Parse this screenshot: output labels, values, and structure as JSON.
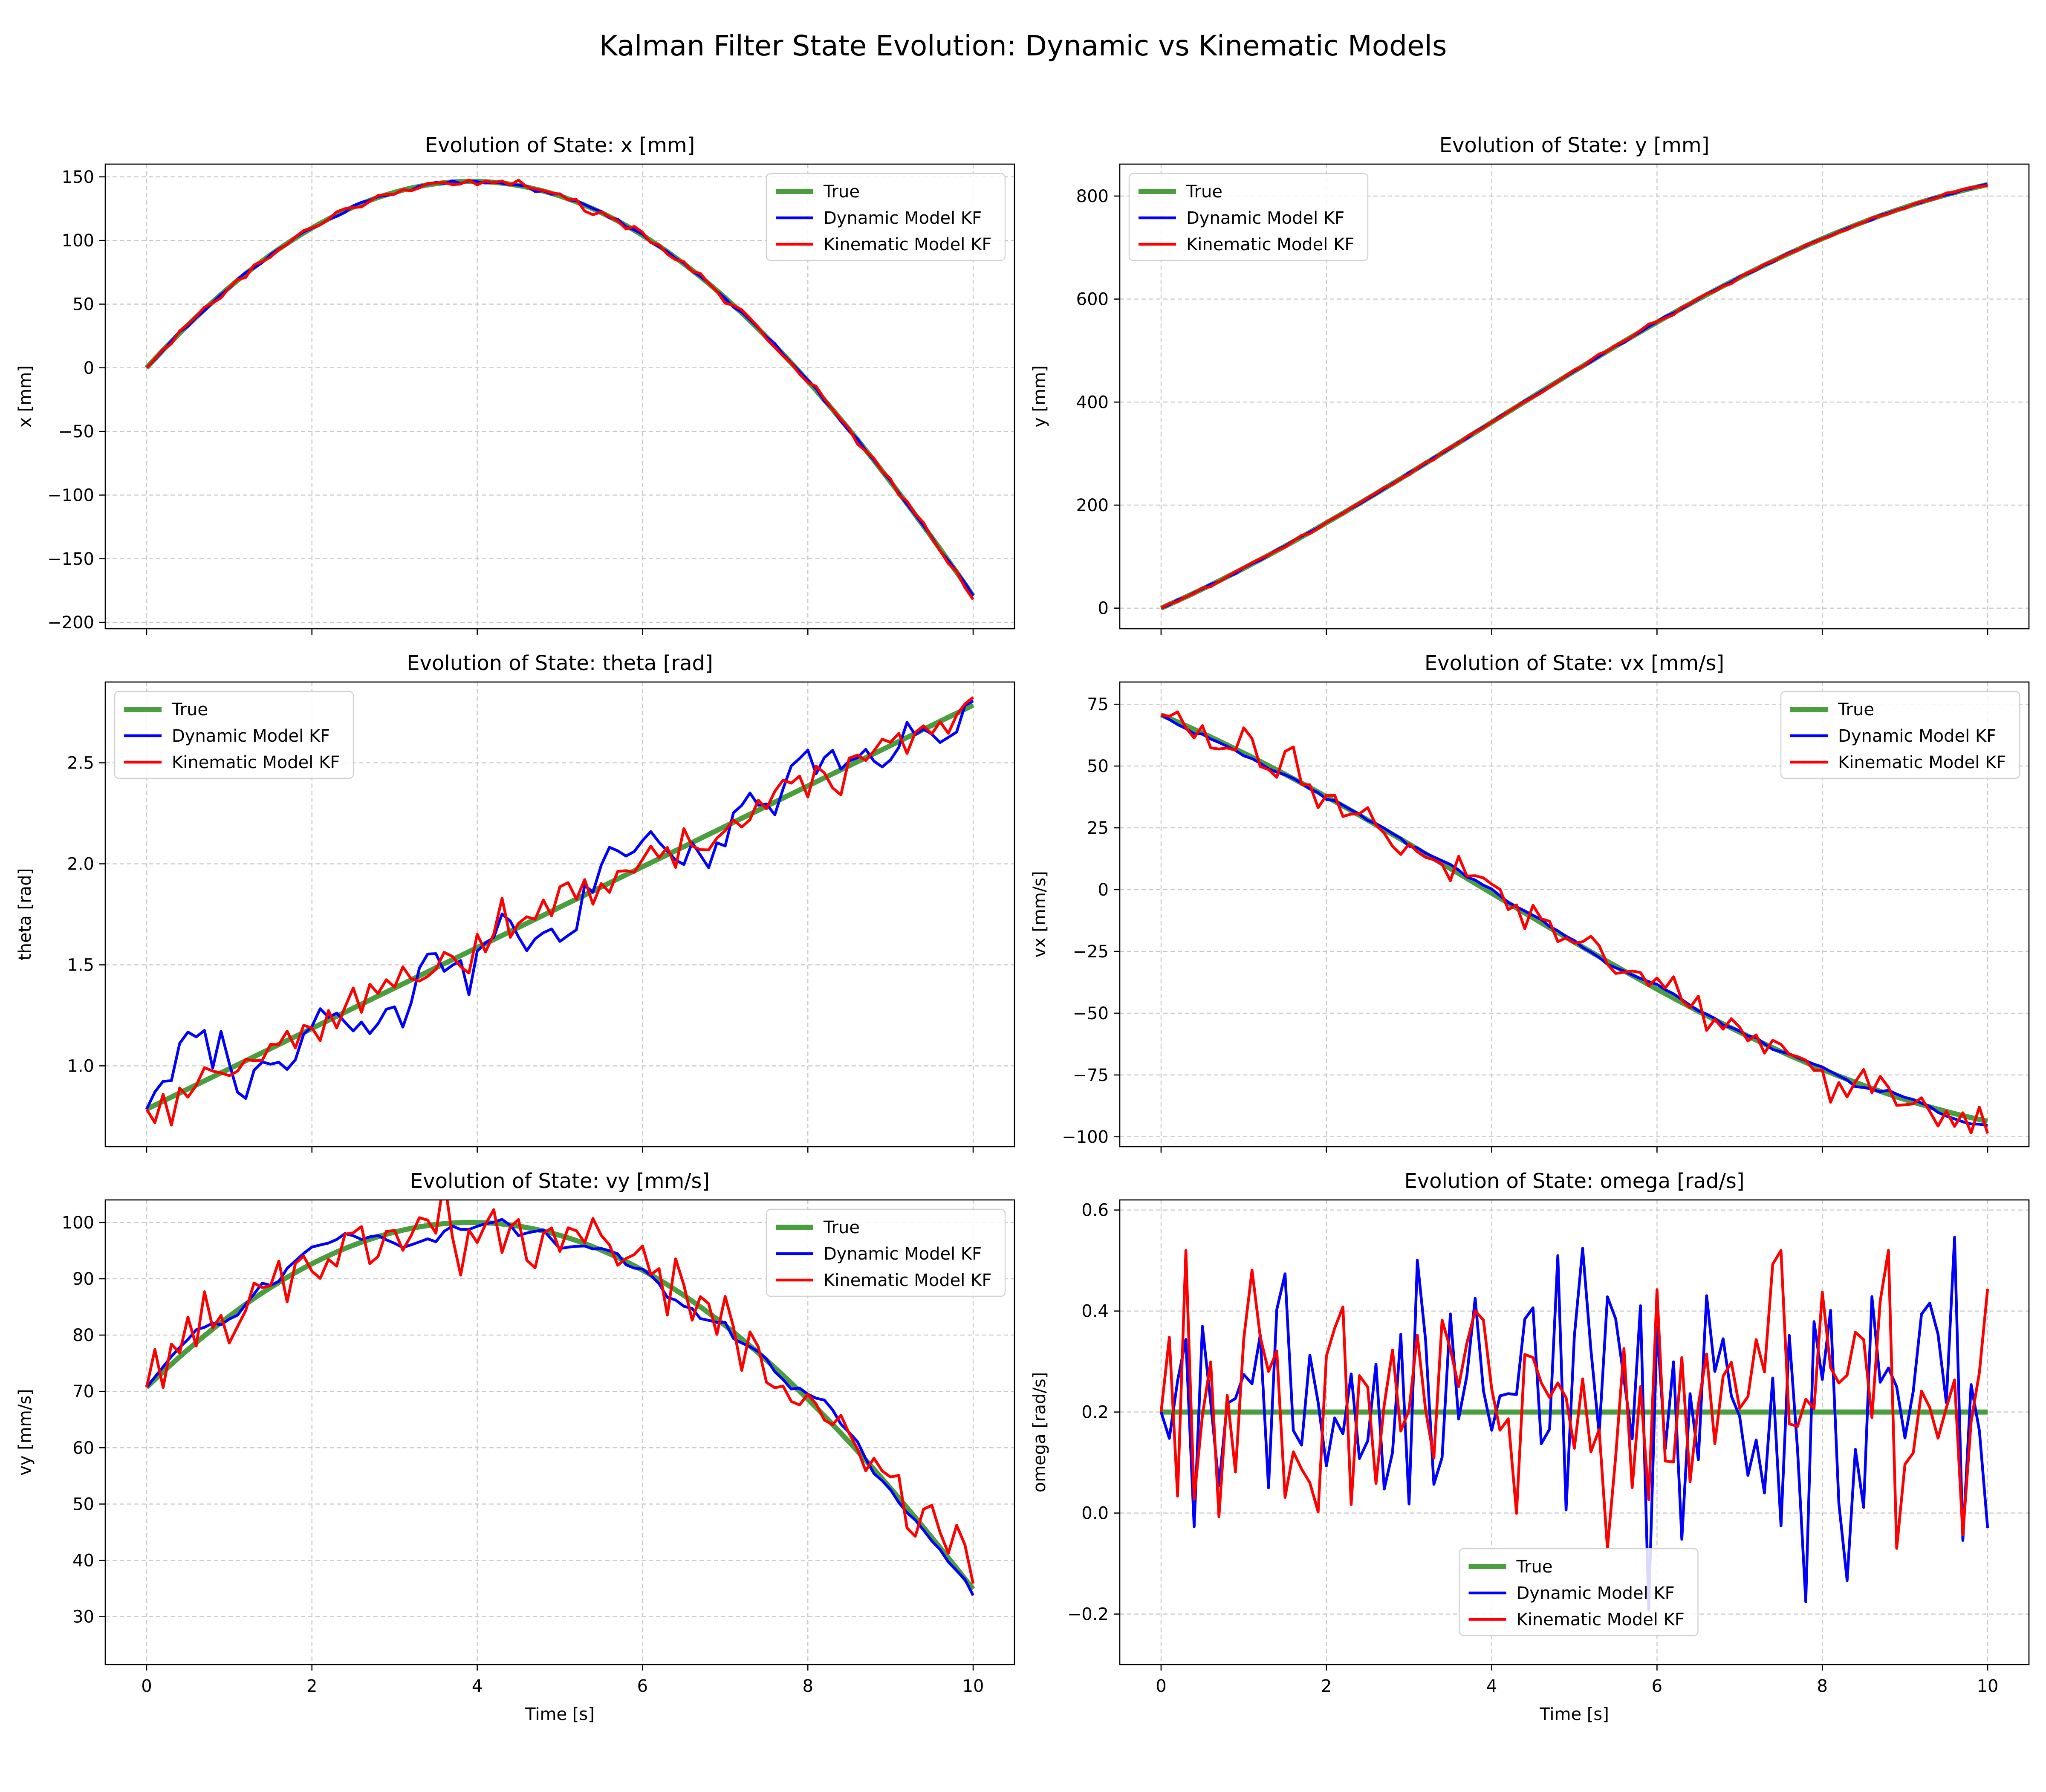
{
  "figure": {
    "title": "Kalman Filter State Evolution: Dynamic vs Kinematic Models"
  },
  "colors": {
    "true": "#4a9e40",
    "dynamic": "#0000ff",
    "kinematic": "#ff0000",
    "grid": "#c8c8c8"
  },
  "chart_data": [
    {
      "type": "line",
      "title": "Evolution of State: x [mm]",
      "xlabel": "",
      "ylabel": "x [mm]",
      "xlim": [
        -0.5,
        10.5
      ],
      "ylim": [
        -205,
        160
      ],
      "xticks": [
        0,
        2,
        4,
        6,
        8,
        10
      ],
      "yticks": [
        -200,
        -150,
        -100,
        -50,
        0,
        50,
        100,
        150
      ],
      "show_xticklabels": false,
      "grid": true,
      "legend": "top-right",
      "model": {
        "kind": "x"
      },
      "series": [
        {
          "name": "True",
          "role": "true"
        },
        {
          "name": "Dynamic Model KF",
          "role": "dynamic"
        },
        {
          "name": "Kinematic Model KF",
          "role": "kinematic"
        }
      ]
    },
    {
      "type": "line",
      "title": "Evolution of State: y [mm]",
      "xlabel": "",
      "ylabel": "y [mm]",
      "xlim": [
        -0.5,
        10.5
      ],
      "ylim": [
        -40,
        862
      ],
      "xticks": [
        0,
        2,
        4,
        6,
        8,
        10
      ],
      "yticks": [
        0,
        200,
        400,
        600,
        800
      ],
      "show_xticklabels": false,
      "grid": true,
      "legend": "top-left",
      "model": {
        "kind": "y"
      },
      "series": [
        {
          "name": "True",
          "role": "true"
        },
        {
          "name": "Dynamic Model KF",
          "role": "dynamic"
        },
        {
          "name": "Kinematic Model KF",
          "role": "kinematic"
        }
      ]
    },
    {
      "type": "line",
      "title": "Evolution of State: theta [rad]",
      "xlabel": "",
      "ylabel": "theta [rad]",
      "xlim": [
        -0.5,
        10.5
      ],
      "ylim": [
        0.6,
        2.9
      ],
      "xticks": [
        0,
        2,
        4,
        6,
        8,
        10
      ],
      "yticks": [
        1.0,
        1.5,
        2.0,
        2.5
      ],
      "tick_decimals": 1,
      "show_xticklabels": false,
      "grid": true,
      "legend": "top-left",
      "model": {
        "kind": "theta",
        "dyn_noise": 0.075,
        "kin_noise": 0.055
      },
      "series": [
        {
          "name": "True",
          "role": "true"
        },
        {
          "name": "Dynamic Model KF",
          "role": "dynamic"
        },
        {
          "name": "Kinematic Model KF",
          "role": "kinematic"
        }
      ]
    },
    {
      "type": "line",
      "title": "Evolution of State: vx [mm/s]",
      "xlabel": "",
      "ylabel": "vx [mm/s]",
      "xlim": [
        -0.5,
        10.5
      ],
      "ylim": [
        -104,
        84
      ],
      "xticks": [
        0,
        2,
        4,
        6,
        8,
        10
      ],
      "yticks": [
        -100,
        -75,
        -50,
        -25,
        0,
        25,
        50,
        75
      ],
      "show_xticklabels": false,
      "grid": true,
      "legend": "top-right",
      "model": {
        "kind": "vx",
        "dyn_noise": 0.6,
        "kin_noise": 4.5
      },
      "series": [
        {
          "name": "True",
          "role": "true"
        },
        {
          "name": "Dynamic Model KF",
          "role": "dynamic"
        },
        {
          "name": "Kinematic Model KF",
          "role": "kinematic"
        }
      ]
    },
    {
      "type": "line",
      "title": "Evolution of State: vy [mm/s]",
      "xlabel": "Time [s]",
      "ylabel": "vy [mm/s]",
      "xlim": [
        -0.5,
        10.5
      ],
      "ylim": [
        21.5,
        104
      ],
      "xticks": [
        0,
        2,
        4,
        6,
        8,
        10
      ],
      "yticks": [
        30,
        40,
        50,
        60,
        70,
        80,
        90,
        100
      ],
      "show_xticklabels": true,
      "grid": true,
      "legend": "top-right",
      "model": {
        "kind": "vy",
        "dyn_noise": 0.8,
        "kin_noise": 3.2
      },
      "series": [
        {
          "name": "True",
          "role": "true"
        },
        {
          "name": "Dynamic Model KF",
          "role": "dynamic"
        },
        {
          "name": "Kinematic Model KF",
          "role": "kinematic"
        }
      ]
    },
    {
      "type": "line",
      "title": "Evolution of State: omega [rad/s]",
      "xlabel": "Time [s]",
      "ylabel": "omega [rad/s]",
      "xlim": [
        -0.5,
        10.5
      ],
      "ylim": [
        -0.3,
        0.62
      ],
      "xticks": [
        0,
        2,
        4,
        6,
        8,
        10
      ],
      "yticks": [
        -0.2,
        0.0,
        0.2,
        0.4,
        0.6
      ],
      "tick_decimals": 1,
      "show_xticklabels": true,
      "grid": true,
      "legend": "lower-center",
      "model": {
        "kind": "omega",
        "value": 0.2,
        "dyn_noise": 0.16,
        "kin_noise": 0.14
      },
      "series": [
        {
          "name": "True",
          "role": "true"
        },
        {
          "name": "Dynamic Model KF",
          "role": "dynamic"
        },
        {
          "name": "Kinematic Model KF",
          "role": "kinematic"
        }
      ]
    }
  ]
}
